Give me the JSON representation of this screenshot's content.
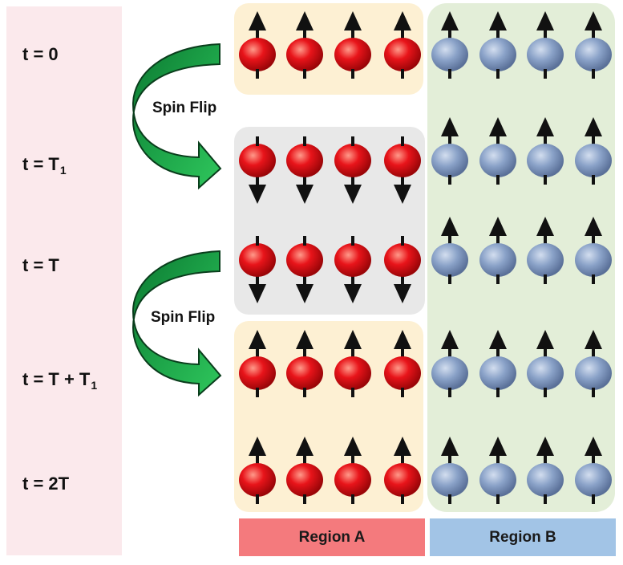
{
  "time_labels": [
    {
      "text": "t = 0",
      "sub": ""
    },
    {
      "text": "t = T",
      "sub": "1"
    },
    {
      "text": "t = T",
      "sub": ""
    },
    {
      "text": "t = T + T",
      "sub": "1"
    },
    {
      "text": "t = 2T",
      "sub": ""
    }
  ],
  "spin_flip_labels": [
    "Spin Flip",
    "Spin Flip"
  ],
  "regions": {
    "a": "Region A",
    "b": "Region B"
  },
  "rows": [
    {
      "region_a_spin": "up",
      "region_b_spin": "up"
    },
    {
      "region_a_spin": "down",
      "region_b_spin": "up"
    },
    {
      "region_a_spin": "down",
      "region_b_spin": "up"
    },
    {
      "region_a_spin": "up",
      "region_b_spin": "up"
    },
    {
      "region_a_spin": "up",
      "region_b_spin": "up"
    }
  ],
  "colors": {
    "region_a_particle": "#e8141a",
    "region_b_particle": "#8aa2c8",
    "flip_arrow": "#1ea64a"
  }
}
